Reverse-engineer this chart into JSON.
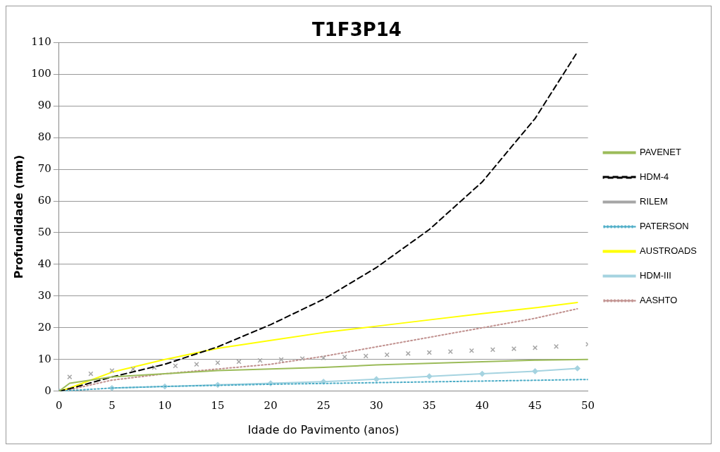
{
  "chart_data": {
    "type": "line",
    "title": "T1F3P14",
    "xlabel": "Idade do Pavimento (anos)",
    "ylabel": "Profundidade (mm)",
    "x": [
      0,
      1,
      5,
      10,
      15,
      20,
      25,
      30,
      35,
      40,
      45,
      49
    ],
    "xlim": [
      0,
      50
    ],
    "xticks": [
      0,
      5,
      10,
      15,
      20,
      25,
      30,
      35,
      40,
      45,
      50
    ],
    "ylim": [
      0,
      110
    ],
    "yticks": [
      0,
      10,
      20,
      30,
      40,
      50,
      60,
      70,
      80,
      90,
      100,
      110
    ],
    "grid": "y",
    "legend": "right",
    "marker": "none",
    "series": [
      {
        "name": "PAVENET",
        "color": "#9bbb59",
        "x": [
          0,
          1,
          5,
          10,
          15,
          20,
          25,
          30,
          35,
          40,
          45,
          50
        ],
        "values": [
          0,
          2.5,
          4.5,
          5.5,
          6.5,
          7,
          7.5,
          8.3,
          8.8,
          9.3,
          9.8,
          10
        ]
      },
      {
        "name": "HDM-4",
        "color": "#000000",
        "line_style": "dashed",
        "values": [
          0,
          0.8,
          4.5,
          8.5,
          14,
          21,
          29,
          39,
          51,
          66,
          86,
          107
        ]
      },
      {
        "name": "RILEM",
        "color": "#a6a6a6",
        "type": "scatter",
        "marker": "cross",
        "x": [
          1,
          3,
          5,
          7,
          9,
          11,
          13,
          15,
          17,
          19,
          21,
          23,
          25,
          27,
          29,
          31,
          33,
          35,
          37,
          39,
          41,
          43,
          45,
          47,
          50
        ],
        "values": [
          4.5,
          5.5,
          6.5,
          7,
          7.5,
          8,
          8.5,
          9,
          9.3,
          9.7,
          10,
          10.3,
          10.5,
          10.8,
          11.1,
          11.5,
          11.9,
          12.2,
          12.5,
          12.8,
          13.1,
          13.4,
          13.7,
          14.1,
          14.8
        ]
      },
      {
        "name": "PATERSON",
        "color": "#4bacc6",
        "line_style": "dotted",
        "x": [
          0,
          5,
          10,
          20,
          30,
          40,
          50
        ],
        "values": [
          0,
          1,
          1.5,
          2.2,
          2.7,
          3.2,
          3.7
        ]
      },
      {
        "name": "AUSTROADS",
        "color": "#ffff00",
        "values": [
          0,
          1,
          6,
          10,
          13.5,
          16,
          18.5,
          20.5,
          22.5,
          24.5,
          26.3,
          28
        ]
      },
      {
        "name": "HDM-III",
        "color": "#a5d3e0",
        "marker": "diamond",
        "values": [
          0,
          null,
          1,
          1.5,
          2,
          2.5,
          3,
          3.8,
          4.7,
          5.5,
          6.3,
          7.2
        ]
      },
      {
        "name": "AASHTO",
        "color": "#c0908e",
        "line_style": "dotted",
        "values": [
          0,
          0.5,
          3.5,
          5.5,
          7,
          8.5,
          11,
          14,
          17,
          20,
          23,
          26
        ]
      }
    ]
  }
}
